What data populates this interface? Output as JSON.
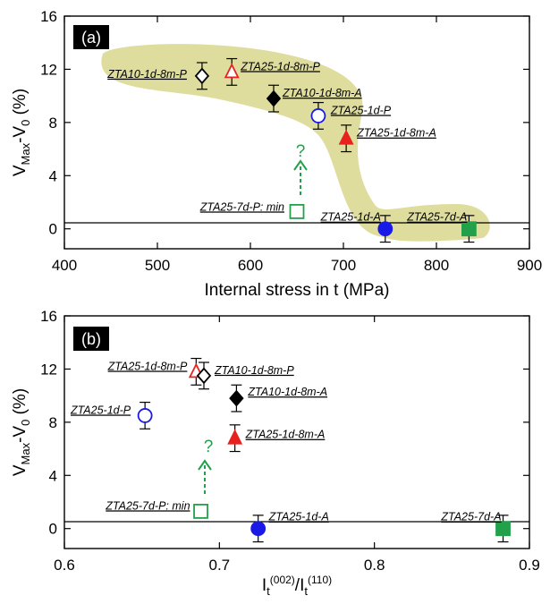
{
  "colors": {
    "red": "#e8201e",
    "blue": "#1a1ae8",
    "green": "#22a04a",
    "highlight": "#dedd9e",
    "black": "#000000"
  },
  "chart_data": [
    {
      "panel_label": "(a)",
      "type": "scatter",
      "xlabel": "Internal stress in t (MPa)",
      "ylabel": "V_Max-V_0 (%)",
      "xlim": [
        400,
        900
      ],
      "ylim": [
        -1.5,
        16
      ],
      "xticks": [
        400,
        500,
        600,
        700,
        800,
        900
      ],
      "yticks": [
        0,
        4,
        8,
        12,
        16
      ],
      "points": [
        {
          "label": "ZTA10-1d-8m-P",
          "x": 548,
          "y": 11.5,
          "err": 1.0,
          "marker": "diamond-open",
          "color": "black"
        },
        {
          "label": "ZTA25-1d-8m-P",
          "x": 580,
          "y": 11.8,
          "err": 1.0,
          "marker": "triangle-open",
          "color": "red"
        },
        {
          "label": "ZTA10-1d-8m-A",
          "x": 625,
          "y": 9.8,
          "err": 1.0,
          "marker": "diamond-filled",
          "color": "black"
        },
        {
          "label": "ZTA25-1d-P",
          "x": 673,
          "y": 8.5,
          "err": 1.0,
          "marker": "circle-open",
          "color": "blue"
        },
        {
          "label": "ZTA25-1d-8m-A",
          "x": 703,
          "y": 6.8,
          "err": 1.0,
          "marker": "triangle-filled",
          "color": "red"
        },
        {
          "label": "ZTA25-7d-P: min",
          "x": 650,
          "y": 1.3,
          "err": 0,
          "marker": "square-open",
          "color": "green"
        },
        {
          "label": "ZTA25-1d-A",
          "x": 745,
          "y": 0.0,
          "err": 1.0,
          "marker": "circle-filled",
          "color": "blue"
        },
        {
          "label": "ZTA25-7d-A",
          "x": 835,
          "y": 0.0,
          "err": 1.0,
          "marker": "square-filled",
          "color": "green"
        }
      ],
      "annotation": "?"
    },
    {
      "panel_label": "(b)",
      "type": "scatter",
      "xlabel": "I_t(002)/I_t(110)",
      "ylabel": "V_Max-V_0 (%)",
      "xlim": [
        0.6,
        0.9
      ],
      "ylim": [
        -1.5,
        16
      ],
      "xticks": [
        0.6,
        0.7,
        0.8,
        0.9
      ],
      "yticks": [
        0,
        4,
        8,
        12,
        16
      ],
      "points": [
        {
          "label": "ZTA25-1d-8m-P",
          "x": 0.685,
          "y": 11.8,
          "err": 1.0,
          "marker": "triangle-open",
          "color": "red"
        },
        {
          "label": "ZTA10-1d-8m-P",
          "x": 0.69,
          "y": 11.5,
          "err": 1.0,
          "marker": "diamond-open",
          "color": "black"
        },
        {
          "label": "ZTA10-1d-8m-A",
          "x": 0.711,
          "y": 9.8,
          "err": 1.0,
          "marker": "diamond-filled",
          "color": "black"
        },
        {
          "label": "ZTA25-1d-P",
          "x": 0.652,
          "y": 8.5,
          "err": 1.0,
          "marker": "circle-open",
          "color": "blue"
        },
        {
          "label": "ZTA25-1d-8m-A",
          "x": 0.71,
          "y": 6.8,
          "err": 1.0,
          "marker": "triangle-filled",
          "color": "red"
        },
        {
          "label": "ZTA25-7d-P: min",
          "x": 0.688,
          "y": 1.3,
          "err": 0,
          "marker": "square-open",
          "color": "green"
        },
        {
          "label": "ZTA25-1d-A",
          "x": 0.725,
          "y": 0.0,
          "err": 1.0,
          "marker": "circle-filled",
          "color": "blue"
        },
        {
          "label": "ZTA25-7d-A",
          "x": 0.883,
          "y": 0.0,
          "err": 1.0,
          "marker": "square-filled",
          "color": "green"
        }
      ],
      "annotation": "?"
    }
  ]
}
